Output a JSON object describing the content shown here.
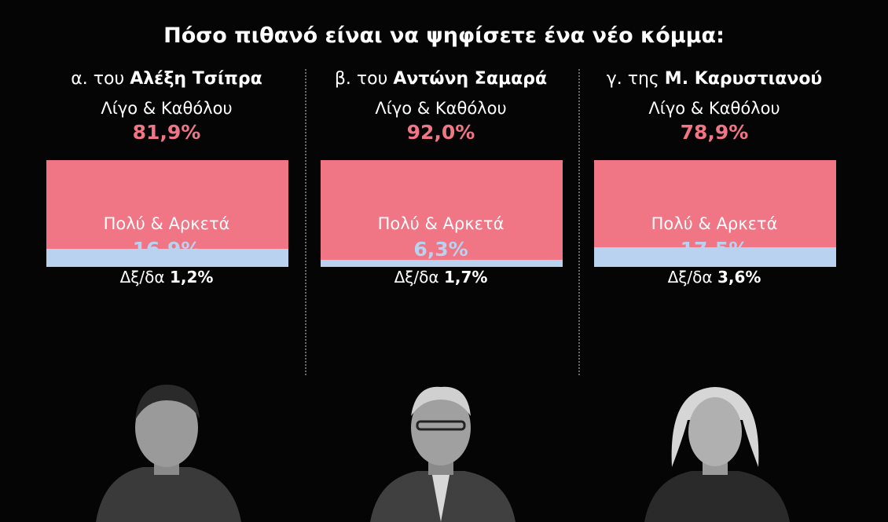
{
  "title": "Πόσο πιθανό είναι να ψηφίσετε ένα νέο κόμμα:",
  "chart_data": {
    "type": "bar",
    "title": "Πόσο πιθανό είναι να ψηφίσετε ένα νέο κόμμα:",
    "categories": [
      "α. του Αλέξη Τσίπρα",
      "β. του Αντώνη Σαμαρά",
      "γ. της Μ. Καρυστιανού"
    ],
    "series": [
      {
        "name": "Λίγο & Καθόλου",
        "values": [
          81.9,
          92.0,
          78.9
        ],
        "color": "#f07585"
      },
      {
        "name": "Πολύ & Αρκετά",
        "values": [
          16.9,
          6.3,
          17.5
        ],
        "color": "#b8d2ef"
      },
      {
        "name": "Δξ/δα",
        "values": [
          1.2,
          1.7,
          3.6
        ]
      }
    ],
    "stacked": true,
    "ylim": [
      0,
      100
    ]
  },
  "panels": [
    {
      "prefix": "α. του ",
      "name": "Αλέξη Τσίπρα",
      "low_label": "Λίγο & Καθόλου",
      "low_value": "81,9%",
      "high_label": "Πολύ & Αρκετά",
      "high_value": "16,9%",
      "dk_label": "Δξ/δα ",
      "dk_value": "1,2%",
      "photo_icon": "person-portrait-icon"
    },
    {
      "prefix": "β. του ",
      "name": "Αντώνη Σαμαρά",
      "low_label": "Λίγο & Καθόλου",
      "low_value": "92,0%",
      "high_label": "Πολύ & Αρκετά",
      "high_value": "6,3%",
      "dk_label": "Δξ/δα ",
      "dk_value": "1,7%",
      "photo_icon": "person-portrait-icon"
    },
    {
      "prefix": "γ. της ",
      "name": "Μ. Καρυστιανού",
      "low_label": "Λίγο & Καθόλου",
      "low_value": "78,9%",
      "high_label": "Πολύ & Αρκετά",
      "high_value": "17,5%",
      "dk_label": "Δξ/δα ",
      "dk_value": "3,6%",
      "photo_icon": "person-portrait-icon"
    }
  ]
}
